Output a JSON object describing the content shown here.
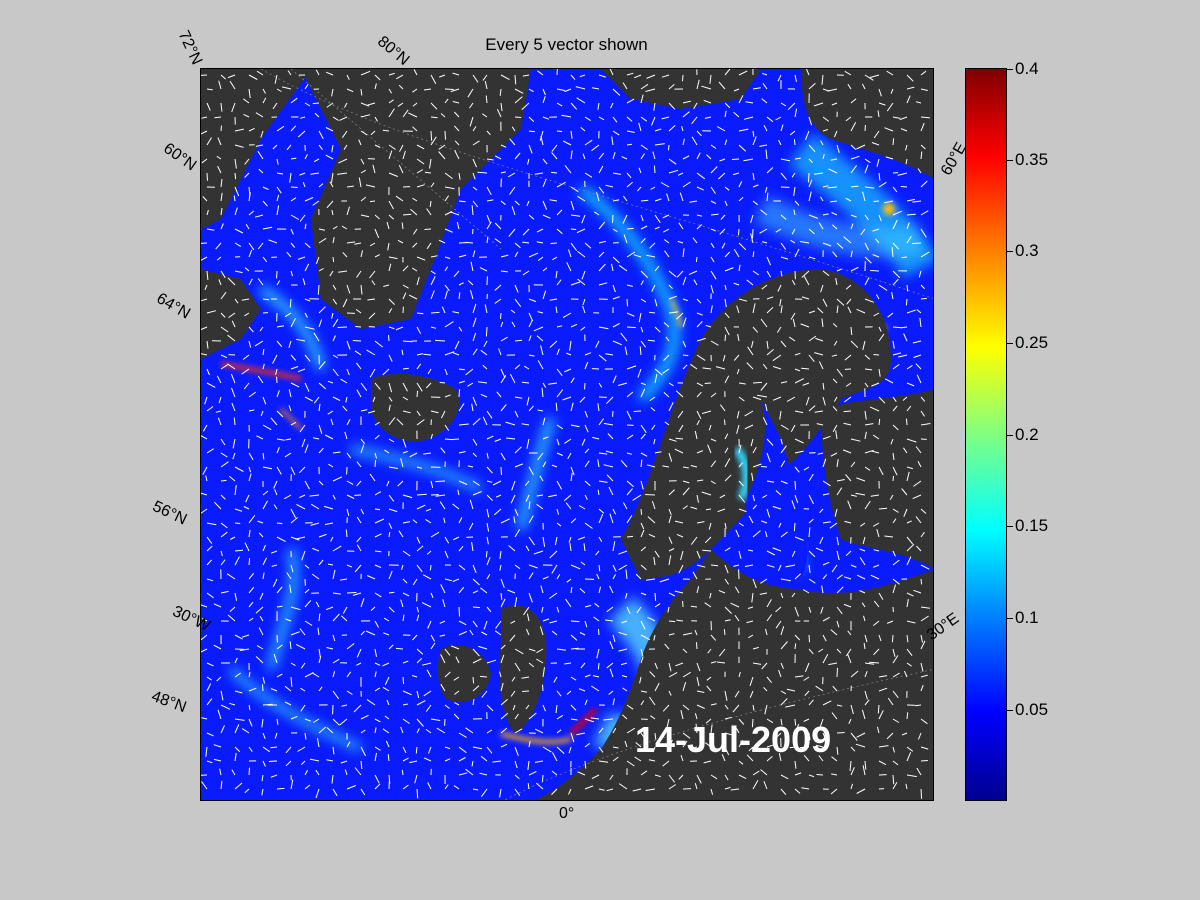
{
  "title": "Every 5 vector shown",
  "date": "14-Jul-2009",
  "lat_labels": [
    "72°N",
    "80°N",
    "60°N",
    "64°N",
    "56°N",
    "48°N"
  ],
  "lon_labels": [
    "60°E",
    "30°E",
    "30°W",
    "0°"
  ],
  "colorbar": {
    "ticks": [
      "0.4",
      "0.35",
      "0.3",
      "0.25",
      "0.2",
      "0.15",
      "0.1",
      "0.05"
    ],
    "range": [
      0,
      0.4
    ],
    "colormap": "jet"
  },
  "colors": {
    "background": "#c8c8c8",
    "land": "#333333",
    "ocean_low": "#0a1cff",
    "vector": "#ffffff"
  }
}
